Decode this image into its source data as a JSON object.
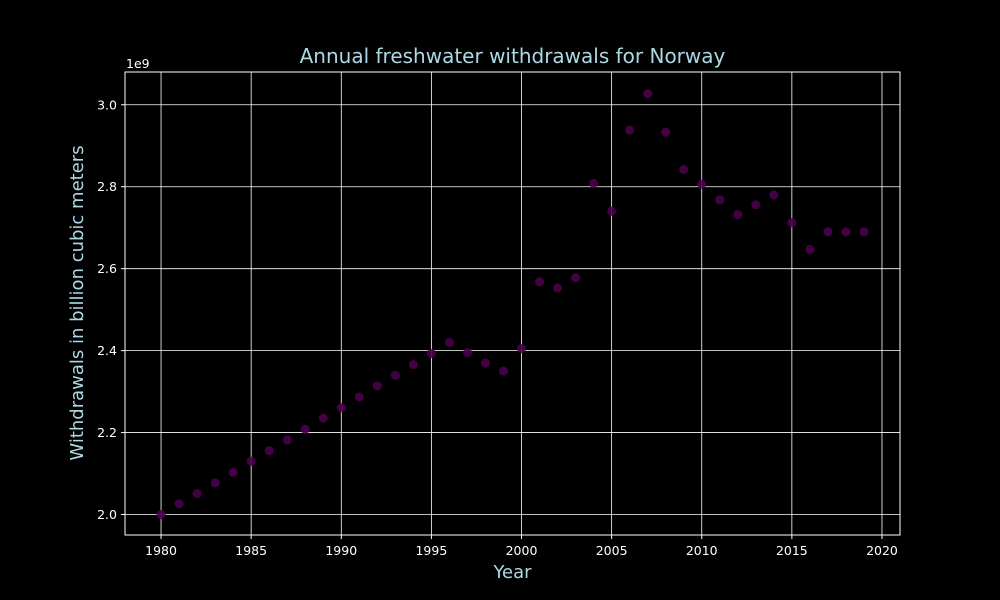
{
  "chart_data": {
    "type": "scatter",
    "title": "Annual freshwater withdrawals for Norway",
    "xlabel": "Year",
    "ylabel": "Withdrawals in billion cubic meters",
    "y_offset_label": "1e9",
    "xlim": [
      1978,
      2021
    ],
    "ylim": [
      1950000000,
      3080000000
    ],
    "x_ticks": [
      1980,
      1985,
      1990,
      1995,
      2000,
      2005,
      2010,
      2015,
      2020
    ],
    "x_tick_labels": [
      "1980",
      "1985",
      "1990",
      "1995",
      "2000",
      "2005",
      "2010",
      "2015",
      "2020"
    ],
    "y_ticks": [
      2000000000,
      2200000000,
      2400000000,
      2600000000,
      2800000000,
      3000000000
    ],
    "y_tick_labels": [
      "2.0",
      "2.2",
      "2.4",
      "2.6",
      "2.8",
      "3.0"
    ],
    "grid": true,
    "colors": {
      "background": "#000000",
      "grid": "#ffffff",
      "axis": "#ffffff",
      "marker": "#4b004b",
      "title": "#add8e6"
    },
    "x": [
      1980,
      1981,
      1982,
      1983,
      1984,
      1985,
      1986,
      1987,
      1988,
      1989,
      1990,
      1991,
      1992,
      1993,
      1994,
      1995,
      1996,
      1997,
      1998,
      1999,
      2000,
      2001,
      2002,
      2003,
      2004,
      2005,
      2006,
      2007,
      2008,
      2009,
      2010,
      2011,
      2012,
      2013,
      2014,
      2015,
      2016,
      2017,
      2018,
      2019
    ],
    "y": [
      2000000000,
      2026000000,
      2051000000,
      2077000000,
      2103000000,
      2130000000,
      2156000000,
      2182000000,
      2208000000,
      2235000000,
      2261000000,
      2287000000,
      2314000000,
      2340000000,
      2366000000,
      2393000000,
      2420000000,
      2395000000,
      2370000000,
      2350000000,
      2405000000,
      2568000000,
      2553000000,
      2578000000,
      2808000000,
      2740000000,
      2938000000,
      3027000000,
      2933000000,
      2842000000,
      2806000000,
      2768000000,
      2732000000,
      2756000000,
      2780000000,
      2712000000,
      2647000000,
      2690000000,
      2690000000,
      2690000000
    ]
  }
}
